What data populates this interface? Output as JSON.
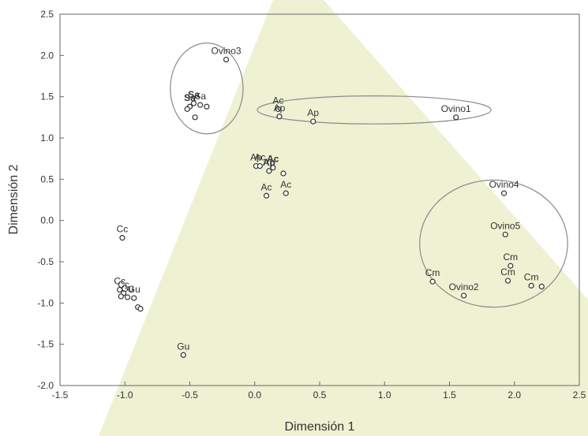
{
  "chart_data": {
    "type": "scatter",
    "xlabel": "Dimensión 1",
    "ylabel": "Dimensión 2",
    "xlim": [
      -1.5,
      2.5
    ],
    "ylim": [
      -2.0,
      2.5
    ],
    "xticks": [
      "-1.5",
      "-1.0",
      "-0.5",
      "0.0",
      "0.5",
      "1.0",
      "1.5",
      "2.0",
      "2.5"
    ],
    "yticks": [
      "-2.0",
      "-1.5",
      "-1.0",
      "-0.5",
      "0.0",
      "0.5",
      "1.0",
      "1.5",
      "2.0",
      "2.5"
    ],
    "grid": false,
    "background_color": "#eef1d2",
    "marker_color": "#333333",
    "ellipse_color": "#8a8a8a",
    "points": [
      {
        "x": -0.22,
        "y": 1.95,
        "label": "Ovino3",
        "bold": false
      },
      {
        "x": -0.47,
        "y": 1.42,
        "label": "Sa",
        "bold": true
      },
      {
        "x": -0.42,
        "y": 1.4,
        "label": "Sa",
        "bold": false
      },
      {
        "x": -0.5,
        "y": 1.38,
        "label": "Sa",
        "bold": true
      },
      {
        "x": -0.37,
        "y": 1.38,
        "label": "",
        "bold": false
      },
      {
        "x": -0.52,
        "y": 1.35,
        "label": "",
        "bold": false
      },
      {
        "x": -0.46,
        "y": 1.25,
        "label": "",
        "bold": false
      },
      {
        "x": 0.18,
        "y": 1.35,
        "label": "Ac",
        "bold": false
      },
      {
        "x": 0.19,
        "y": 1.26,
        "label": "Ap",
        "bold": false
      },
      {
        "x": 0.45,
        "y": 1.2,
        "label": "Ap",
        "bold": false
      },
      {
        "x": 1.55,
        "y": 1.25,
        "label": "Ovino1",
        "bold": false
      },
      {
        "x": 0.01,
        "y": 0.66,
        "label": "Ap",
        "bold": false
      },
      {
        "x": 0.04,
        "y": 0.66,
        "label": "Ac",
        "bold": false
      },
      {
        "x": 0.11,
        "y": 0.6,
        "label": "Ap",
        "bold": true
      },
      {
        "x": 0.14,
        "y": 0.64,
        "label": "Ac",
        "bold": true
      },
      {
        "x": 0.22,
        "y": 0.57,
        "label": "",
        "bold": false
      },
      {
        "x": 0.09,
        "y": 0.3,
        "label": "Ac",
        "bold": false
      },
      {
        "x": 0.24,
        "y": 0.33,
        "label": "Ac",
        "bold": false
      },
      {
        "x": -1.02,
        "y": -0.21,
        "label": "Cc",
        "bold": false
      },
      {
        "x": -1.04,
        "y": -0.84,
        "label": "Cc",
        "bold": false
      },
      {
        "x": -1.01,
        "y": -0.88,
        "label": "Cc",
        "bold": false
      },
      {
        "x": -1.03,
        "y": -0.92,
        "label": "",
        "bold": false
      },
      {
        "x": -0.98,
        "y": -0.93,
        "label": "Gu",
        "bold": false
      },
      {
        "x": -0.93,
        "y": -0.94,
        "label": "Gu",
        "bold": false
      },
      {
        "x": -0.9,
        "y": -1.05,
        "label": "",
        "bold": false
      },
      {
        "x": -0.88,
        "y": -1.07,
        "label": "",
        "bold": false
      },
      {
        "x": -0.55,
        "y": -1.63,
        "label": "Gu",
        "bold": false
      },
      {
        "x": 1.92,
        "y": 0.33,
        "label": "Ovino4",
        "bold": false
      },
      {
        "x": 1.93,
        "y": -0.17,
        "label": "Ovino5",
        "bold": false
      },
      {
        "x": 1.37,
        "y": -0.74,
        "label": "Cm",
        "bold": false
      },
      {
        "x": 1.61,
        "y": -0.91,
        "label": "Ovino2",
        "bold": false
      },
      {
        "x": 1.95,
        "y": -0.73,
        "label": "Cm",
        "bold": false
      },
      {
        "x": 1.97,
        "y": -0.55,
        "label": "Cm",
        "bold": false
      },
      {
        "x": 2.13,
        "y": -0.79,
        "label": "Cm",
        "bold": false
      },
      {
        "x": 2.21,
        "y": -0.8,
        "label": "",
        "bold": false
      }
    ],
    "groups": [
      {
        "cx": -0.37,
        "cy": 1.6,
        "rx": 0.28,
        "ry": 0.55
      },
      {
        "cx": 0.92,
        "cy": 1.34,
        "rx": 0.9,
        "ry": 0.17
      },
      {
        "cx": 1.84,
        "cy": -0.28,
        "rx": 0.57,
        "ry": 0.77
      }
    ]
  }
}
